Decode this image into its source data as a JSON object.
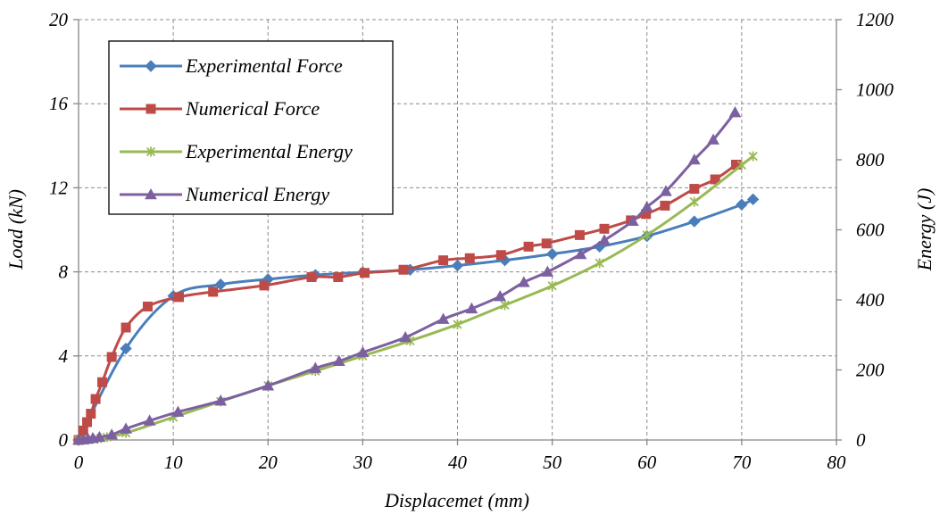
{
  "chart_data": {
    "type": "line",
    "title": "",
    "xlabel": "Displacemet (mm)",
    "ylabel": "Load (kN)",
    "y2label": "Energy (J)",
    "xlim": [
      0,
      80
    ],
    "ylim": [
      0,
      20
    ],
    "y2lim": [
      0,
      1200
    ],
    "xticks": [
      0,
      10,
      20,
      30,
      40,
      50,
      60,
      70,
      80
    ],
    "yticks": [
      0,
      4,
      8,
      12,
      16,
      20
    ],
    "y2ticks": [
      0,
      200,
      400,
      600,
      800,
      1000,
      1200
    ],
    "grid": true,
    "legend_position": "top-left",
    "series": [
      {
        "name": "Experimental Force",
        "axis": "left",
        "color": "#4a7ebb",
        "marker": "diamond",
        "x": [
          0,
          5,
          10,
          15,
          20,
          25,
          30,
          35,
          40,
          45,
          50,
          55,
          60,
          65,
          70,
          71.2
        ],
        "y": [
          0,
          4.35,
          6.85,
          7.4,
          7.65,
          7.85,
          7.98,
          8.1,
          8.3,
          8.55,
          8.85,
          9.2,
          9.7,
          10.4,
          11.2,
          11.45
        ]
      },
      {
        "name": "Numerical Force",
        "axis": "left",
        "color": "#be4b48",
        "marker": "square",
        "x": [
          0,
          0.5,
          0.9,
          1.3,
          1.8,
          2.5,
          3.5,
          5,
          7.3,
          10.6,
          14.2,
          19.6,
          24.6,
          27.4,
          30.2,
          34.3,
          38.5,
          41.3,
          44.6,
          47.5,
          49.4,
          52.9,
          55.5,
          58.3,
          59.9,
          61.9,
          65,
          67.2,
          69.4
        ],
        "y": [
          0,
          0.45,
          0.85,
          1.25,
          1.95,
          2.75,
          3.95,
          5.35,
          6.35,
          6.8,
          7.05,
          7.35,
          7.75,
          7.75,
          7.95,
          8.1,
          8.55,
          8.65,
          8.8,
          9.2,
          9.35,
          9.75,
          10.05,
          10.45,
          10.75,
          11.15,
          11.95,
          12.4,
          13.1
        ]
      },
      {
        "name": "Experimental Energy",
        "axis": "right",
        "color": "#98b954",
        "marker": "x",
        "x": [
          0,
          1,
          2,
          3,
          5,
          10,
          15,
          20,
          25,
          30,
          35,
          40,
          45,
          50,
          55,
          60,
          65,
          70,
          71.2
        ],
        "y": [
          0,
          1,
          4,
          8,
          20,
          65,
          110,
          155,
          197,
          240,
          283,
          330,
          385,
          440,
          505,
          585,
          680,
          785,
          810
        ]
      },
      {
        "name": "Numerical Energy",
        "axis": "right",
        "color": "#7d60a0",
        "marker": "triangle",
        "x": [
          0,
          0.5,
          1,
          1.5,
          2.2,
          3.5,
          5,
          7.5,
          10.5,
          15,
          20,
          25,
          27.5,
          30,
          34.5,
          38.5,
          41.5,
          44.5,
          47,
          49.5,
          53,
          55.5,
          58.5,
          60,
          62,
          65,
          67,
          69.3
        ],
        "y": [
          0,
          1,
          3,
          5,
          8,
          15,
          32,
          55,
          80,
          112,
          155,
          205,
          225,
          250,
          293,
          345,
          375,
          410,
          450,
          480,
          530,
          570,
          625,
          665,
          710,
          800,
          857,
          935
        ]
      }
    ]
  }
}
